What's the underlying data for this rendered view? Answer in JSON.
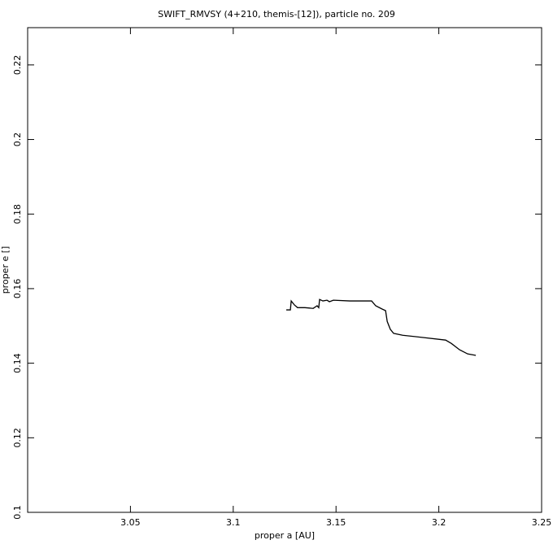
{
  "chart_data": {
    "type": "line",
    "title": "SWIFT_RMVSY (4+210, themis-[12]), particle no. 209",
    "x_label": "proper a [AU]",
    "y_label": "proper e []",
    "x": [
      3.1258,
      3.1278,
      3.1282,
      3.1298,
      3.1313,
      3.1349,
      3.1389,
      3.1408,
      3.1416,
      3.142,
      3.1436,
      3.1456,
      3.1468,
      3.1487,
      3.1567,
      3.1673,
      3.1693,
      3.1725,
      3.1741,
      3.1749,
      3.1764,
      3.178,
      3.1824,
      3.1923,
      3.2033,
      3.2061,
      3.2101,
      3.214,
      3.218
    ],
    "series": [
      {
        "color": "#000000",
        "values": [
          0.1543,
          0.1543,
          0.1567,
          0.1556,
          0.1549,
          0.1549,
          0.1547,
          0.1554,
          0.1549,
          0.1571,
          0.1567,
          0.1569,
          0.1565,
          0.1569,
          0.1567,
          0.1567,
          0.1554,
          0.1545,
          0.1541,
          0.1512,
          0.1491,
          0.148,
          0.1475,
          0.1469,
          0.1462,
          0.1453,
          0.1436,
          0.1425,
          0.1421
        ]
      }
    ],
    "xlim": [
      3.0,
      3.25
    ],
    "xticks": [
      3.05,
      3.1,
      3.15,
      3.2,
      3.25
    ],
    "ylim": [
      0.1,
      0.23
    ],
    "yticks": [
      0.1,
      0.12,
      0.14,
      0.16,
      0.18,
      0.2,
      0.22
    ]
  }
}
